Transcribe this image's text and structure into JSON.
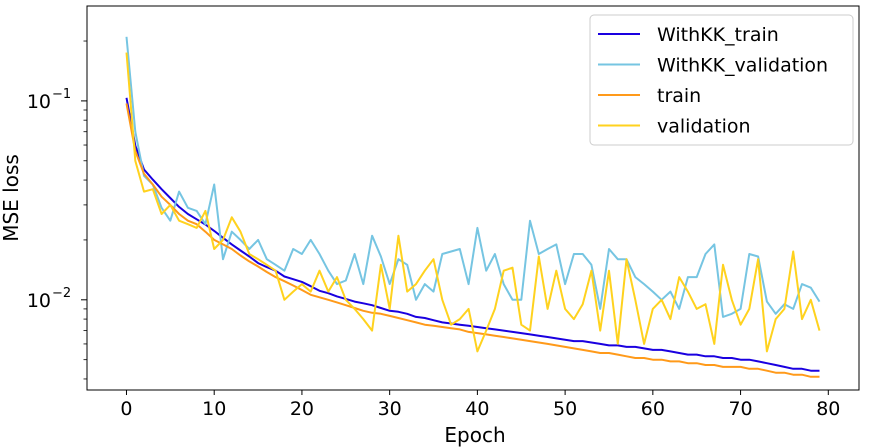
{
  "chart_data": {
    "type": "line",
    "title": "",
    "xlabel": "Epoch",
    "ylabel": "MSE loss",
    "yscale": "log",
    "xlim": [
      -4.5,
      83.5
    ],
    "ylim": [
      0.00352,
      0.3
    ],
    "x_ticks": [
      0,
      10,
      20,
      30,
      40,
      50,
      60,
      70,
      80
    ],
    "x_tick_labels": [
      "0",
      "10",
      "20",
      "30",
      "40",
      "50",
      "60",
      "70",
      "80"
    ],
    "y_ticks": [
      0.01,
      0.1
    ],
    "y_tick_labels": [
      {
        "base": "10",
        "exp": "−2"
      },
      {
        "base": "10",
        "exp": "−1"
      }
    ],
    "legend_position": "top-right",
    "grid": false,
    "series": [
      {
        "name": "WithKK_train",
        "color": "#1a00e0",
        "values": [
          0.1036,
          0.0596,
          0.0452,
          0.0402,
          0.036,
          0.0325,
          0.0293,
          0.027,
          0.0254,
          0.0239,
          0.0222,
          0.0205,
          0.019,
          0.0177,
          0.0165,
          0.0153,
          0.0146,
          0.014,
          0.0131,
          0.0127,
          0.0123,
          0.0117,
          0.0111,
          0.0108,
          0.0104,
          0.0101,
          0.0098,
          0.0096,
          0.0094,
          0.0091,
          0.0088,
          0.0087,
          0.0085,
          0.0082,
          0.0081,
          0.0079,
          0.0077,
          0.0076,
          0.0075,
          0.0074,
          0.0073,
          0.0072,
          0.0071,
          0.007,
          0.0069,
          0.0068,
          0.0067,
          0.0066,
          0.0065,
          0.0064,
          0.0063,
          0.0062,
          0.0062,
          0.0061,
          0.006,
          0.0059,
          0.0059,
          0.0058,
          0.0058,
          0.0057,
          0.0056,
          0.0056,
          0.0055,
          0.0054,
          0.0053,
          0.0053,
          0.0052,
          0.0052,
          0.0051,
          0.0051,
          0.005,
          0.005,
          0.0049,
          0.0048,
          0.0047,
          0.0046,
          0.0045,
          0.0045,
          0.0044,
          0.0044
        ]
      },
      {
        "name": "WithKK_validation",
        "color": "#76c5e2",
        "values": [
          0.21,
          0.07,
          0.042,
          0.038,
          0.029,
          0.025,
          0.035,
          0.029,
          0.028,
          0.024,
          0.038,
          0.016,
          0.022,
          0.02,
          0.018,
          0.02,
          0.016,
          0.015,
          0.014,
          0.018,
          0.017,
          0.02,
          0.017,
          0.014,
          0.012,
          0.0125,
          0.017,
          0.012,
          0.021,
          0.0165,
          0.012,
          0.016,
          0.015,
          0.01,
          0.012,
          0.011,
          0.017,
          0.0175,
          0.018,
          0.012,
          0.023,
          0.014,
          0.017,
          0.012,
          0.01,
          0.01,
          0.025,
          0.017,
          0.018,
          0.019,
          0.012,
          0.017,
          0.017,
          0.015,
          0.009,
          0.018,
          0.016,
          0.016,
          0.013,
          0.012,
          0.011,
          0.01,
          0.011,
          0.009,
          0.013,
          0.013,
          0.017,
          0.019,
          0.0082,
          0.0085,
          0.009,
          0.017,
          0.0165,
          0.0098,
          0.0085,
          0.0095,
          0.009,
          0.012,
          0.0115,
          0.0098
        ]
      },
      {
        "name": "train",
        "color": "#ff9a1a",
        "values": [
          0.097,
          0.056,
          0.043,
          0.038,
          0.033,
          0.03,
          0.027,
          0.025,
          0.024,
          0.022,
          0.02,
          0.019,
          0.018,
          0.0167,
          0.0156,
          0.0147,
          0.0138,
          0.013,
          0.0124,
          0.0118,
          0.0112,
          0.0106,
          0.0103,
          0.01,
          0.0097,
          0.0094,
          0.0091,
          0.0088,
          0.0086,
          0.0085,
          0.0083,
          0.0081,
          0.0079,
          0.0077,
          0.0075,
          0.0074,
          0.0073,
          0.0072,
          0.0071,
          0.0069,
          0.0068,
          0.0067,
          0.0066,
          0.0065,
          0.0064,
          0.0063,
          0.0062,
          0.0061,
          0.006,
          0.0059,
          0.0058,
          0.0057,
          0.0056,
          0.0055,
          0.0054,
          0.0054,
          0.0053,
          0.0052,
          0.0051,
          0.0051,
          0.005,
          0.005,
          0.0049,
          0.0049,
          0.0048,
          0.0048,
          0.0047,
          0.0047,
          0.0046,
          0.0046,
          0.0046,
          0.0045,
          0.0045,
          0.0044,
          0.0043,
          0.0043,
          0.0042,
          0.0042,
          0.0041,
          0.0041
        ]
      },
      {
        "name": "validation",
        "color": "#ffd21e",
        "values": [
          0.175,
          0.05,
          0.035,
          0.036,
          0.027,
          0.03,
          0.025,
          0.024,
          0.023,
          0.028,
          0.018,
          0.02,
          0.026,
          0.022,
          0.017,
          0.016,
          0.015,
          0.014,
          0.01,
          0.011,
          0.012,
          0.011,
          0.014,
          0.011,
          0.013,
          0.01,
          0.009,
          0.008,
          0.007,
          0.015,
          0.009,
          0.021,
          0.011,
          0.012,
          0.014,
          0.016,
          0.01,
          0.0075,
          0.008,
          0.009,
          0.0055,
          0.007,
          0.009,
          0.014,
          0.0145,
          0.0075,
          0.007,
          0.0165,
          0.009,
          0.014,
          0.009,
          0.008,
          0.0095,
          0.014,
          0.007,
          0.014,
          0.006,
          0.016,
          0.01,
          0.006,
          0.009,
          0.01,
          0.008,
          0.013,
          0.011,
          0.009,
          0.0095,
          0.006,
          0.015,
          0.01,
          0.0075,
          0.009,
          0.016,
          0.0055,
          0.008,
          0.009,
          0.0175,
          0.008,
          0.01,
          0.007
        ]
      }
    ]
  }
}
